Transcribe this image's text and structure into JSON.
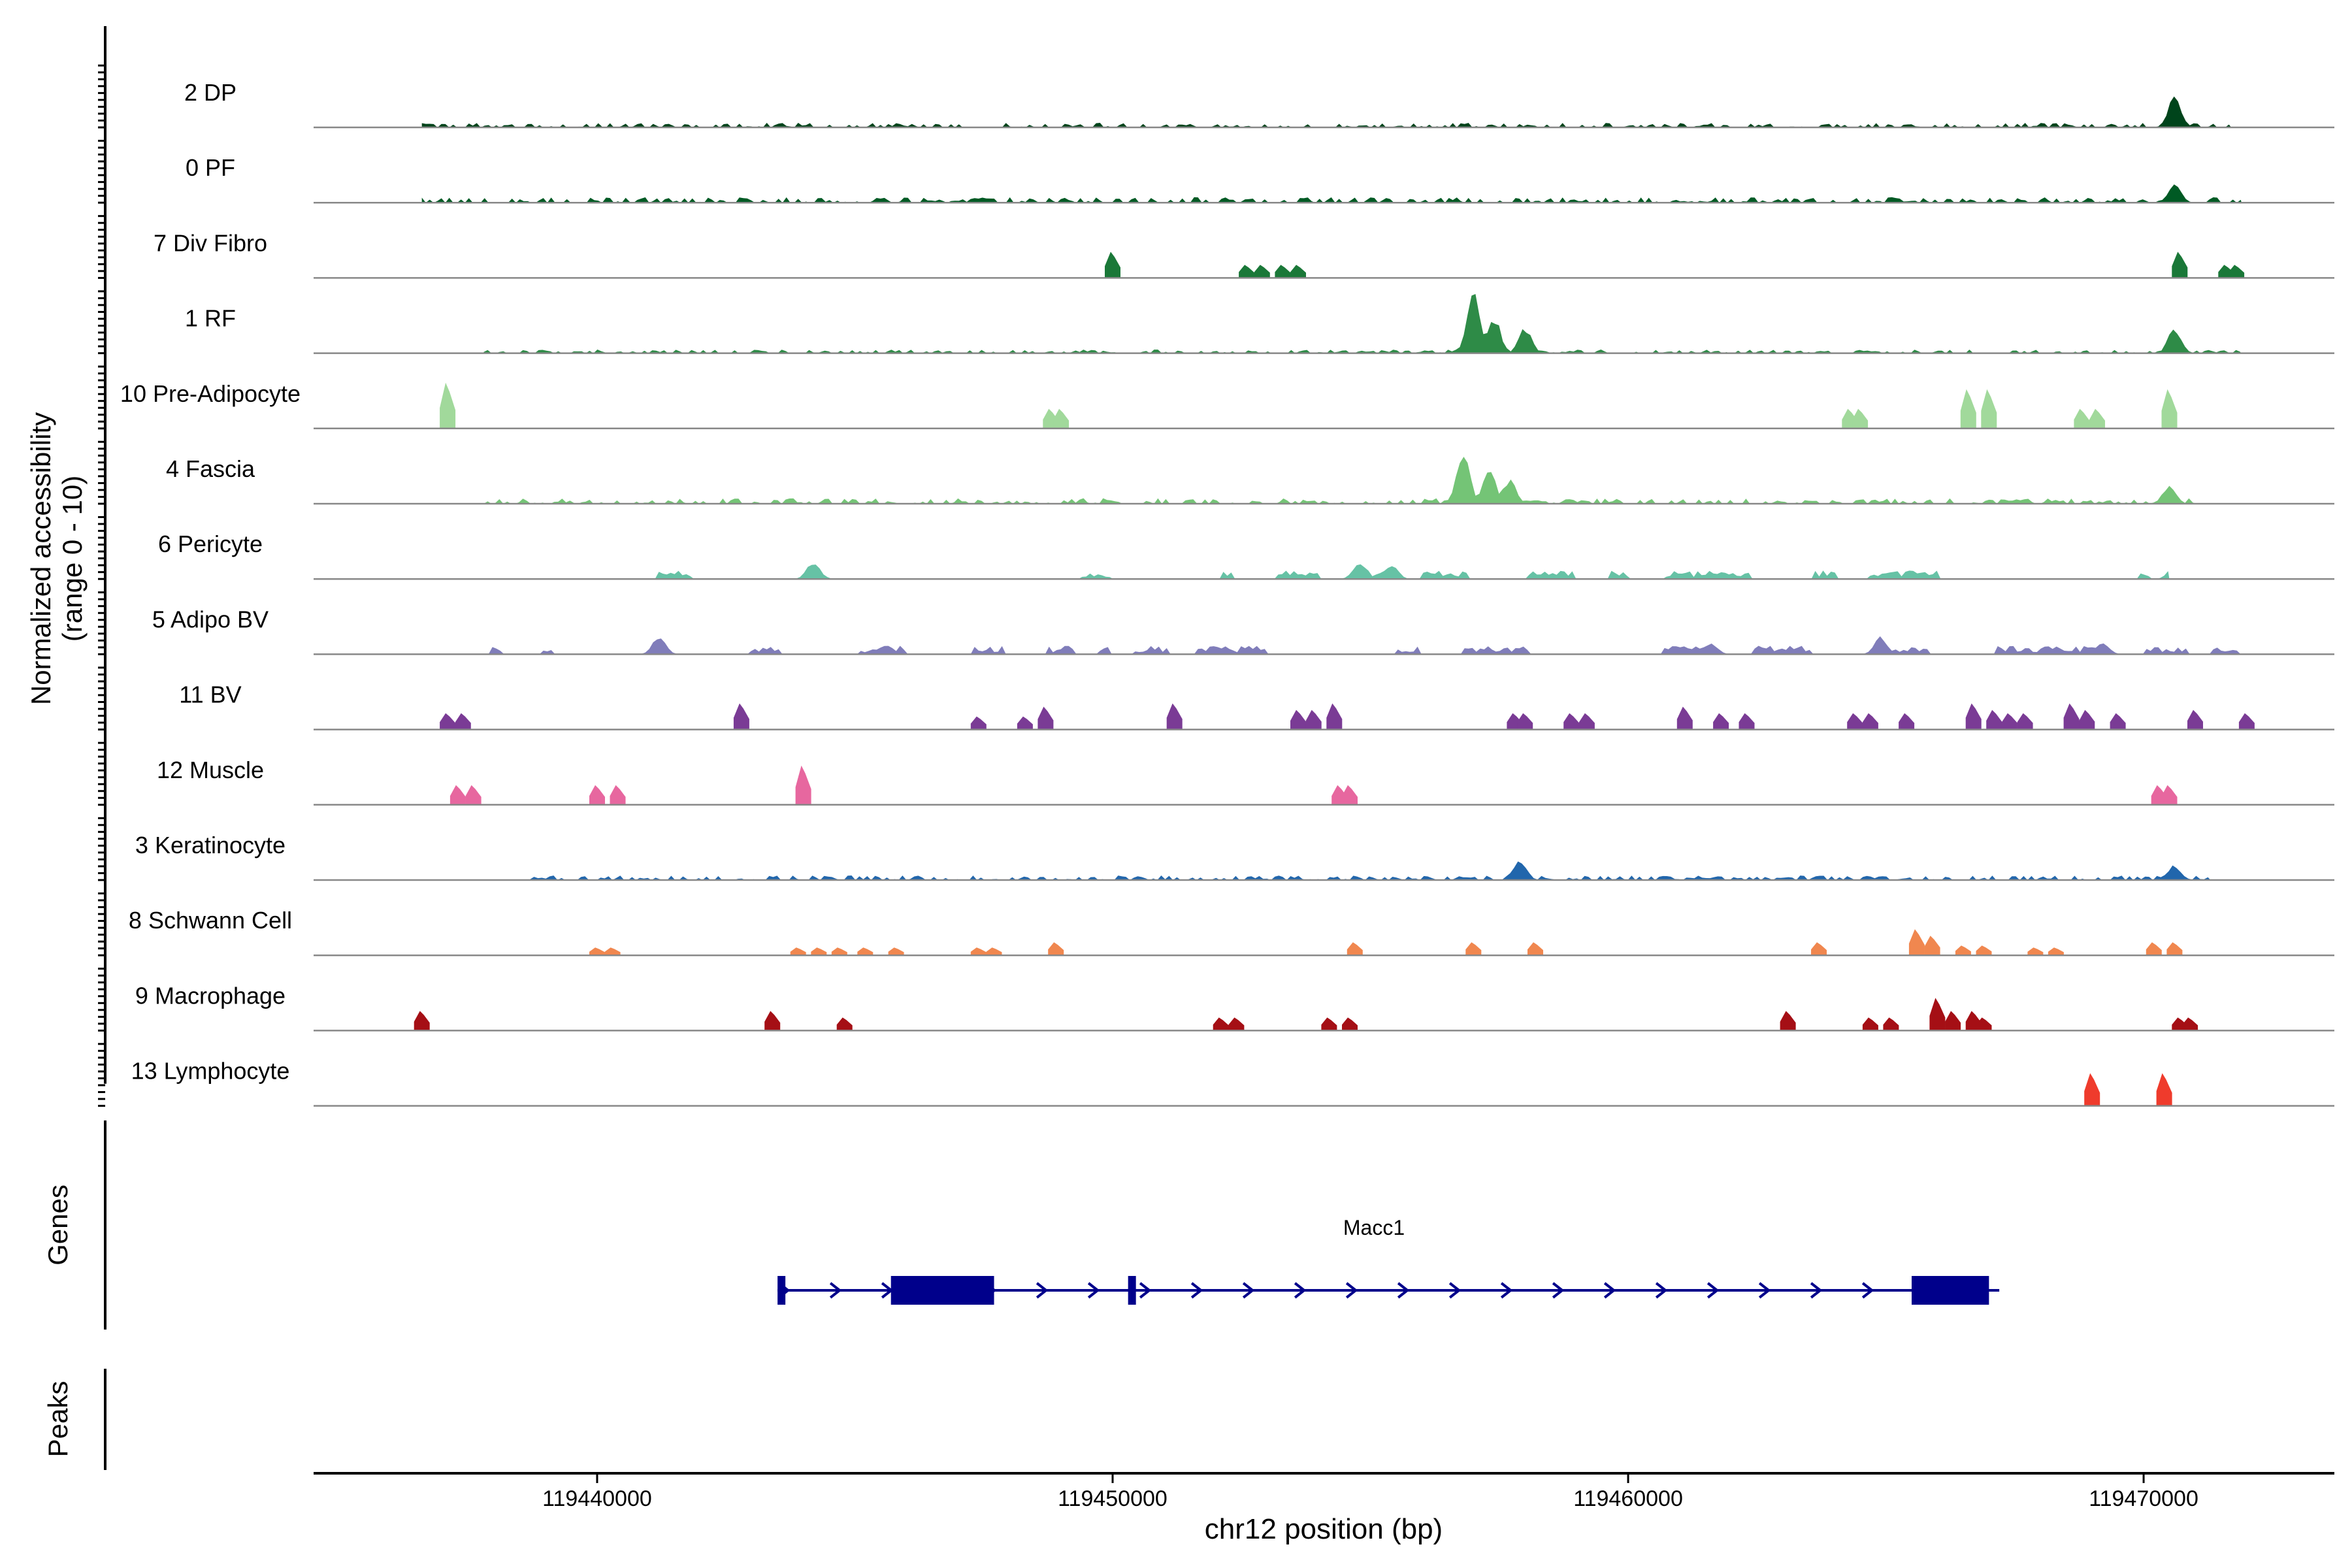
{
  "chart_data": {
    "type": "area",
    "chromosome": "chr12",
    "xlabel": "chr12 position (bp)",
    "ylabel_line1": "Normalized accessibility",
    "ylabel_line2": "(range 0 - 10)",
    "genes_label": "Genes",
    "peaks_label": "Peaks",
    "x_range": [
      119434500,
      119473700
    ],
    "y_range": [
      0,
      10
    ],
    "x_ticks": [
      119440000,
      119450000,
      119460000,
      119470000
    ],
    "x_tick_labels": [
      "119440000",
      "119450000",
      "119460000",
      "119470000"
    ],
    "tracks": [
      {
        "label": "2 DP",
        "color": "#00441b",
        "style": "dense",
        "range": [
          119436600,
          119471700
        ],
        "baseline": 0.5,
        "peaks": [
          [
            119470600,
            5
          ]
        ]
      },
      {
        "label": "0 PF",
        "color": "#005a24",
        "style": "dense",
        "range": [
          119436600,
          119471900
        ],
        "baseline": 0.6,
        "peaks": [
          [
            119470600,
            3
          ]
        ]
      },
      {
        "label": "7 Div Fibro",
        "color": "#1a7838",
        "style": "sparse",
        "peaks": [
          [
            119450000,
            4
          ],
          [
            119452600,
            2
          ],
          [
            119452900,
            2
          ],
          [
            119453300,
            2
          ],
          [
            119453600,
            2
          ],
          [
            119470700,
            4
          ],
          [
            119471600,
            2
          ],
          [
            119471800,
            2
          ]
        ]
      },
      {
        "label": "1 RF",
        "color": "#2e8b47",
        "style": "dense",
        "range": [
          119437800,
          119471900
        ],
        "baseline": 0.4,
        "peaks": [
          [
            119457000,
            9.5
          ],
          [
            119457400,
            6
          ],
          [
            119458000,
            4
          ],
          [
            119470600,
            4
          ]
        ]
      },
      {
        "label": "10 Pre-Adipocyte",
        "color": "#a1d99b",
        "style": "sparse",
        "peaks": [
          [
            119437100,
            7
          ],
          [
            119448800,
            3
          ],
          [
            119449000,
            3
          ],
          [
            119464300,
            3
          ],
          [
            119464500,
            3
          ],
          [
            119466600,
            6
          ],
          [
            119467000,
            6
          ],
          [
            119468800,
            3
          ],
          [
            119469100,
            3
          ],
          [
            119470500,
            6
          ]
        ]
      },
      {
        "label": "4 Fascia",
        "color": "#74c476",
        "style": "dense",
        "range": [
          119437800,
          119471300
        ],
        "baseline": 0.6,
        "peaks": [
          [
            119456800,
            9
          ],
          [
            119457300,
            6
          ],
          [
            119457700,
            4
          ],
          [
            119470500,
            3
          ]
        ]
      },
      {
        "label": "6 Pericyte",
        "color": "#66c2a5",
        "style": "patchy",
        "range": [
          119437700,
          119470500
        ],
        "baseline": 1.0,
        "peaks": [
          [
            119444200,
            3
          ],
          [
            119454800,
            3
          ],
          [
            119455400,
            2.5
          ],
          [
            119470600,
            2
          ]
        ]
      },
      {
        "label": "5 Adipo BV",
        "color": "#807dba",
        "style": "patchy",
        "range": [
          119436600,
          119472000
        ],
        "baseline": 1.0,
        "peaks": [
          [
            119441200,
            3
          ],
          [
            119461600,
            2
          ],
          [
            119464900,
            3
          ],
          [
            119469200,
            2
          ]
        ]
      },
      {
        "label": "11 BV",
        "color": "#7a3b95",
        "style": "sparse",
        "peaks": [
          [
            119437100,
            2.5
          ],
          [
            119437400,
            2.5
          ],
          [
            119442800,
            4
          ],
          [
            119447400,
            2
          ],
          [
            119448300,
            2
          ],
          [
            119448700,
            3.5
          ],
          [
            119451200,
            4
          ],
          [
            119453600,
            3
          ],
          [
            119453900,
            3
          ],
          [
            119454300,
            4
          ],
          [
            119457800,
            2.5
          ],
          [
            119458000,
            2.5
          ],
          [
            119458900,
            2.5
          ],
          [
            119459200,
            2.5
          ],
          [
            119461100,
            3.5
          ],
          [
            119461800,
            2.5
          ],
          [
            119462300,
            2.5
          ],
          [
            119464400,
            2.5
          ],
          [
            119464700,
            2.5
          ],
          [
            119465400,
            2.5
          ],
          [
            119466700,
            4
          ],
          [
            119467100,
            3
          ],
          [
            119467400,
            2.5
          ],
          [
            119467700,
            2.5
          ],
          [
            119468600,
            4
          ],
          [
            119468900,
            3
          ],
          [
            119469500,
            2.5
          ],
          [
            119471000,
            3
          ],
          [
            119472000,
            2.5
          ]
        ]
      },
      {
        "label": "12 Muscle",
        "color": "#e7679f",
        "style": "sparse",
        "peaks": [
          [
            119437300,
            3
          ],
          [
            119437600,
            3
          ],
          [
            119440000,
            3
          ],
          [
            119440400,
            3
          ],
          [
            119444000,
            6
          ],
          [
            119454400,
            3
          ],
          [
            119454600,
            3
          ],
          [
            119470300,
            3
          ],
          [
            119470500,
            3
          ]
        ]
      },
      {
        "label": "3 Keratinocyte",
        "color": "#2166ac",
        "style": "dense",
        "range": [
          119438700,
          119471300
        ],
        "baseline": 0.5,
        "peaks": [
          [
            119457900,
            3.5
          ],
          [
            119470600,
            2.5
          ]
        ]
      },
      {
        "label": "8 Schwann Cell",
        "color": "#f0874f",
        "style": "sparse",
        "peaks": [
          [
            119440000,
            1.2
          ],
          [
            119440300,
            1.2
          ],
          [
            119443900,
            1.2
          ],
          [
            119444300,
            1.2
          ],
          [
            119444700,
            1.2
          ],
          [
            119445200,
            1.2
          ],
          [
            119445800,
            1.2
          ],
          [
            119447400,
            1.2
          ],
          [
            119447700,
            1.2
          ],
          [
            119448900,
            2
          ],
          [
            119454700,
            2
          ],
          [
            119457000,
            2
          ],
          [
            119458200,
            2
          ],
          [
            119463700,
            2
          ],
          [
            119465600,
            4
          ],
          [
            119465900,
            3
          ],
          [
            119466500,
            1.5
          ],
          [
            119466900,
            1.5
          ],
          [
            119467900,
            1.2
          ],
          [
            119468300,
            1.2
          ],
          [
            119470200,
            2
          ],
          [
            119470600,
            2
          ]
        ]
      },
      {
        "label": "9 Macrophage",
        "color": "#a50f15",
        "style": "sparse",
        "peaks": [
          [
            119436600,
            3
          ],
          [
            119443400,
            3
          ],
          [
            119444800,
            2
          ],
          [
            119452100,
            2
          ],
          [
            119452400,
            2
          ],
          [
            119454200,
            2
          ],
          [
            119454600,
            2
          ],
          [
            119463100,
            3
          ],
          [
            119464700,
            2
          ],
          [
            119465100,
            2
          ],
          [
            119466000,
            5
          ],
          [
            119466300,
            3
          ],
          [
            119466700,
            3
          ],
          [
            119466900,
            2
          ],
          [
            119470700,
            2
          ],
          [
            119470900,
            2
          ]
        ]
      },
      {
        "label": "13 Lymphocyte",
        "color": "#ef3b2c",
        "style": "sparse",
        "peaks": [
          [
            119469000,
            5
          ],
          [
            119470400,
            5
          ]
        ]
      }
    ],
    "gene": {
      "name": "Macc1",
      "color": "#00008b",
      "start": 119443500,
      "end": 119467200,
      "exons": [
        [
          119443500,
          119443650
        ],
        [
          119445700,
          119447700
        ],
        [
          119450300,
          119450450
        ],
        [
          119465500,
          119467000
        ]
      ]
    }
  }
}
